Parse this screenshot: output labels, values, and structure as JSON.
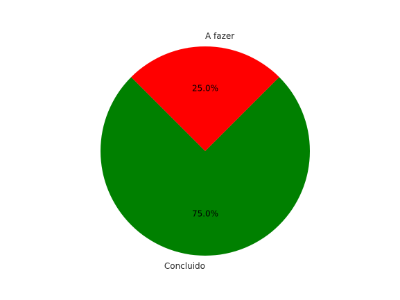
{
  "chart_data": {
    "type": "pie",
    "title": "",
    "slices": [
      {
        "label": "Concluido",
        "value": 75.0,
        "pct_label": "75.0%",
        "color": "#008000"
      },
      {
        "label": "A fazer",
        "value": 25.0,
        "pct_label": "25.0%",
        "color": "#ff0000"
      }
    ],
    "start_angle_deg": 135,
    "direction": "counterclockwise",
    "legend": "none"
  }
}
